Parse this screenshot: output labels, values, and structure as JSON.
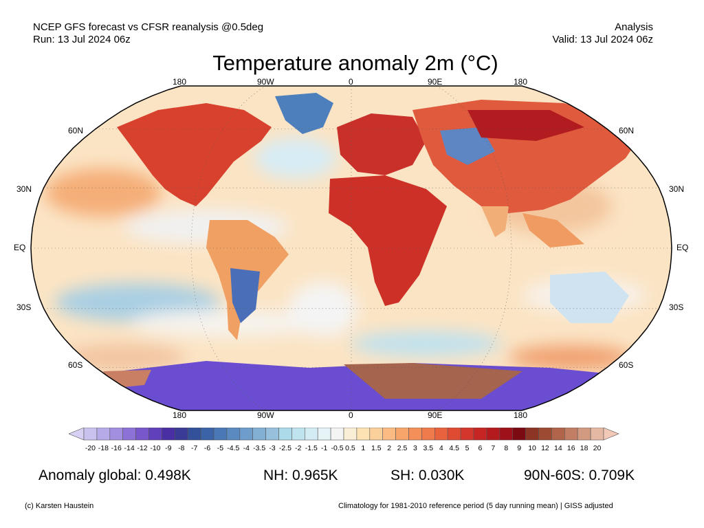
{
  "header": {
    "left_line1": "NCEP GFS forecast vs CFSR reanalysis @0.5deg",
    "left_line2": "Run: 13 Jul 2024 06z",
    "right_line1": "Analysis",
    "right_line2": "Valid: 13 Jul 2024 06z"
  },
  "title": "Temperature anomaly 2m (°C)",
  "map": {
    "lon_labels_top": [
      "180",
      "90W",
      "0",
      "90E",
      "180"
    ],
    "lon_labels_bottom": [
      "180",
      "90W",
      "0",
      "90E",
      "180"
    ],
    "lat_labels_left": [
      "60N",
      "30N",
      "EQ",
      "30S",
      "60S"
    ],
    "lat_labels_right": [
      "60N",
      "30N",
      "EQ",
      "30S",
      "60S"
    ],
    "projection": "Robinson"
  },
  "colorbar": {
    "ticks": [
      "-20",
      "-18",
      "-16",
      "-14",
      "-12",
      "-10",
      "-9",
      "-8",
      "-7",
      "-6",
      "-5",
      "-4.5",
      "-4",
      "-3.5",
      "-3",
      "-2.5",
      "-2",
      "-1.5",
      "-1",
      "-0.5",
      "0.5",
      "1",
      "1.5",
      "2",
      "2.5",
      "3",
      "3.5",
      "4",
      "4.5",
      "5",
      "6",
      "7",
      "8",
      "9",
      "10",
      "12",
      "14",
      "16",
      "18",
      "20"
    ],
    "colors": [
      "#c9c1ee",
      "#b7aae8",
      "#a28fe0",
      "#8c72d6",
      "#7757cb",
      "#6140bb",
      "#4a2ea3",
      "#3a3b97",
      "#33509b",
      "#3a63a8",
      "#4a78b6",
      "#5b8ac1",
      "#6e9dcb",
      "#82afd4",
      "#97c0dc",
      "#addae9",
      "#bfe3ef",
      "#d3ecf4",
      "#e6f4f8",
      "#f4f4f4",
      "#fbeed6",
      "#fde2b3",
      "#fcd09a",
      "#fbbb82",
      "#f8a56c",
      "#f48f5a",
      "#ef7a4b",
      "#e8623e",
      "#df4a33",
      "#d4362b",
      "#c72424",
      "#b41b1f",
      "#9e111b",
      "#7b0a12",
      "#8c3524",
      "#9d4a33",
      "#b06449",
      "#c27e64",
      "#d39a82",
      "#e4b8a2"
    ]
  },
  "stats": {
    "global": "Anomaly global: 0.498K",
    "nh": "NH: 0.965K",
    "sh": "SH: 0.030K",
    "arctic": "90N-60S: 0.709K"
  },
  "footer": {
    "credit": "(c) Karsten Haustein",
    "note": "Climatology for 1981-2010 reference period (5 day running mean) | GISS adjusted"
  }
}
